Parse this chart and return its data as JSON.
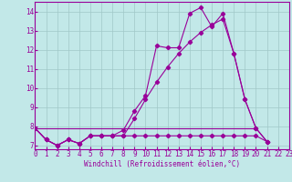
{
  "background_color": "#c2e8e8",
  "grid_color": "#a0c8c8",
  "line_color": "#990099",
  "marker_size": 2.2,
  "xlim": [
    0,
    23
  ],
  "ylim": [
    6.8,
    14.5
  ],
  "xticks": [
    0,
    1,
    2,
    3,
    4,
    5,
    6,
    7,
    8,
    9,
    10,
    11,
    12,
    13,
    14,
    15,
    16,
    17,
    18,
    19,
    20,
    21,
    22,
    23
  ],
  "yticks": [
    7,
    8,
    9,
    10,
    11,
    12,
    13,
    14
  ],
  "xlabel": "Windchill (Refroidissement éolien,°C)",
  "line1_x": [
    0,
    1,
    2,
    3,
    4,
    5,
    6,
    7,
    8,
    9,
    10,
    11,
    12,
    13,
    14,
    15,
    16,
    17,
    18,
    19,
    20,
    21
  ],
  "line1_y": [
    7.9,
    7.3,
    7.0,
    7.3,
    7.1,
    7.5,
    7.5,
    7.5,
    7.8,
    8.8,
    9.6,
    12.2,
    12.1,
    12.1,
    13.9,
    14.2,
    13.2,
    13.9,
    11.8,
    9.4,
    7.9,
    7.2
  ],
  "line2_x": [
    0,
    1,
    2,
    3,
    4,
    5,
    6,
    7,
    8,
    9,
    10,
    11,
    12,
    13,
    14,
    15,
    16,
    17,
    18,
    19,
    20,
    21
  ],
  "line2_y": [
    7.9,
    7.3,
    7.0,
    7.3,
    7.1,
    7.5,
    7.5,
    7.5,
    7.5,
    7.5,
    7.5,
    7.5,
    7.5,
    7.5,
    7.5,
    7.5,
    7.5,
    7.5,
    7.5,
    7.5,
    7.5,
    7.2
  ],
  "line3_x": [
    0,
    1,
    2,
    3,
    4,
    5,
    6,
    7,
    8,
    9,
    10,
    11,
    12,
    13,
    14,
    15,
    16,
    17,
    18,
    19,
    20,
    21
  ],
  "line3_y": [
    7.9,
    7.3,
    7.0,
    7.3,
    7.1,
    7.5,
    7.5,
    7.5,
    7.5,
    8.4,
    9.4,
    10.3,
    11.1,
    11.8,
    12.4,
    12.9,
    13.3,
    13.6,
    11.8,
    9.4,
    7.9,
    7.2
  ],
  "line4_x": [
    0,
    20
  ],
  "line4_y": [
    7.9,
    7.9
  ],
  "xlabel_fontsize": 5.5,
  "tick_fontsize": 5.5
}
